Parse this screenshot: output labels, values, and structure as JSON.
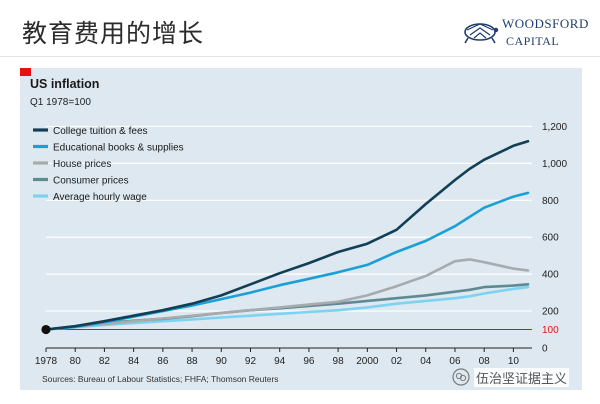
{
  "slide": {
    "title": "教育费用的增长",
    "logo_line1": "WOODSFORD",
    "logo_line2": "CAPITAL"
  },
  "watermark": {
    "text": "伍治坚证据主义"
  },
  "chart_data": {
    "type": "line",
    "title": "US inflation",
    "subtitle": "Q1 1978=100",
    "source": "Sources: Bureau of Labour Statistics; FHFA; Thomson Reuters",
    "x": [
      1978,
      1980,
      1982,
      1984,
      1986,
      1988,
      1990,
      1992,
      1994,
      1996,
      1998,
      2000,
      2002,
      2004,
      2006,
      2007,
      2008,
      2010,
      2011
    ],
    "xlim": [
      1978,
      2011
    ],
    "xticks": [
      1978,
      1980,
      1982,
      1984,
      1986,
      1988,
      1990,
      1992,
      1994,
      1996,
      1998,
      2000,
      2002,
      2004,
      2006,
      2008,
      2010
    ],
    "xtick_labels": [
      "1978",
      "80",
      "82",
      "84",
      "86",
      "88",
      "90",
      "92",
      "94",
      "96",
      "98",
      "2000",
      "02",
      "04",
      "06",
      "08",
      "10"
    ],
    "ylim": [
      0,
      1300
    ],
    "yticks": [
      0,
      200,
      400,
      600,
      800,
      1000,
      1200
    ],
    "ytick_labels": [
      "0",
      "200",
      "400",
      "600",
      "800",
      "1,000",
      "1,200"
    ],
    "reference_line": {
      "value": 100,
      "label": "100",
      "color": "#e3120b"
    },
    "series": [
      {
        "name": "College tuition & fees",
        "color": "#123f55",
        "values": [
          100,
          118,
          145,
          175,
          205,
          240,
          285,
          345,
          405,
          460,
          520,
          565,
          640,
          780,
          910,
          970,
          1020,
          1095,
          1120
        ]
      },
      {
        "name": "Educational books & supplies",
        "color": "#1aa0d6",
        "values": [
          100,
          115,
          140,
          170,
          200,
          230,
          265,
          300,
          340,
          375,
          410,
          450,
          520,
          580,
          660,
          710,
          760,
          820,
          840
        ]
      },
      {
        "name": "House prices",
        "color": "#a8abad",
        "values": [
          100,
          115,
          130,
          145,
          160,
          175,
          190,
          205,
          220,
          235,
          250,
          285,
          335,
          390,
          470,
          480,
          465,
          430,
          420
        ]
      },
      {
        "name": "Consumer prices",
        "color": "#5e8a94",
        "values": [
          100,
          118,
          135,
          148,
          158,
          172,
          190,
          205,
          215,
          228,
          240,
          255,
          270,
          285,
          305,
          315,
          330,
          338,
          345
        ]
      },
      {
        "name": "Average hourly wage",
        "color": "#7cd3ef",
        "values": [
          100,
          112,
          125,
          135,
          145,
          155,
          165,
          175,
          185,
          195,
          205,
          220,
          240,
          255,
          270,
          280,
          295,
          320,
          330
        ]
      }
    ]
  }
}
